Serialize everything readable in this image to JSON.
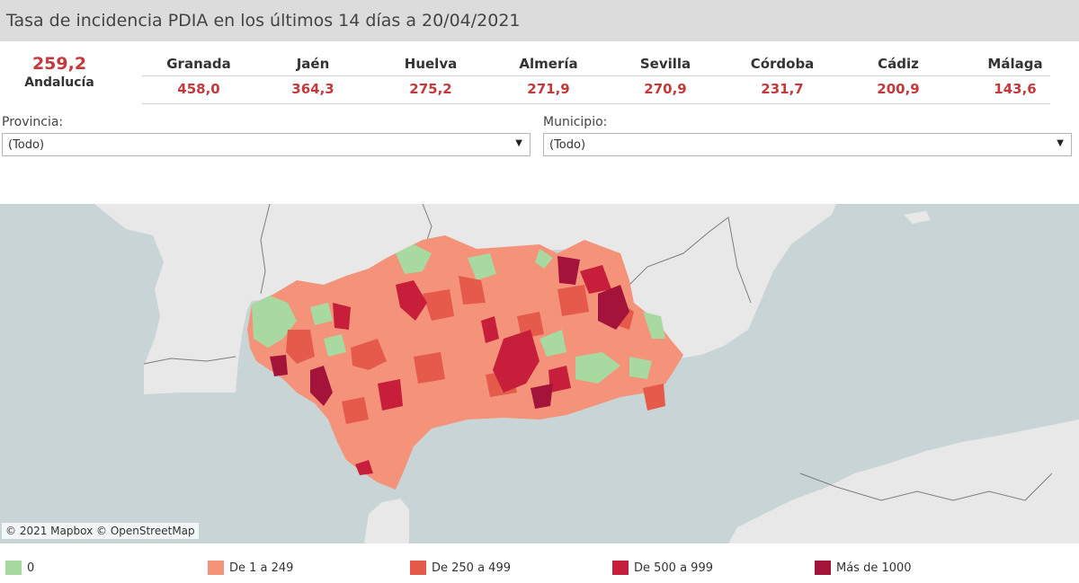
{
  "header": {
    "title": "Tasa de incidencia PDIA en los últimos 14 días a 20/04/2021"
  },
  "summary": {
    "value": "259,2",
    "label": "Andalucía"
  },
  "provinces": [
    {
      "name": "Granada",
      "value": "458,0"
    },
    {
      "name": "Jaén",
      "value": "364,3"
    },
    {
      "name": "Huelva",
      "value": "275,2"
    },
    {
      "name": "Almería",
      "value": "271,9"
    },
    {
      "name": "Sevilla",
      "value": "270,9"
    },
    {
      "name": "Córdoba",
      "value": "231,7"
    },
    {
      "name": "Cádiz",
      "value": "200,9"
    },
    {
      "name": "Málaga",
      "value": "143,6"
    }
  ],
  "filters": {
    "provincia": {
      "label": "Provincia:",
      "value": "(Todo)"
    },
    "municipio": {
      "label": "Municipio:",
      "value": "(Todo)"
    }
  },
  "map": {
    "attribution": "© 2021 Mapbox  © OpenStreetMap"
  },
  "legend": [
    {
      "label": "0",
      "color": "#a8d9a0"
    },
    {
      "label": "De 1 a 249",
      "color": "#f4937a"
    },
    {
      "label": "De 250 a 499",
      "color": "#e55a4a"
    },
    {
      "label": "De 500 a 999",
      "color": "#c71e3c"
    },
    {
      "label": "Más de 1000",
      "color": "#a4133a"
    }
  ],
  "colors": {
    "value_red": "#c4393c",
    "land": "#e8e8e8",
    "sea": "#c9d4d6"
  }
}
